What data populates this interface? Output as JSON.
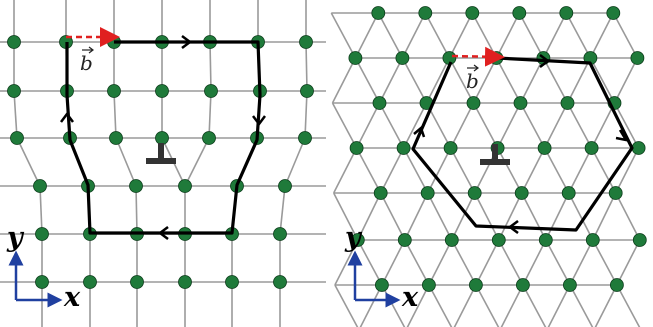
{
  "figure": {
    "panel_left": {
      "burgers_label": "b",
      "x_axis_label": "x",
      "y_axis_label": "y"
    },
    "panel_right": {
      "burgers_label": "b",
      "x_axis_label": "x",
      "y_axis_label": "y"
    }
  },
  "colors": {
    "atom": "#1f7a3a",
    "bond": "#9a9a9a",
    "circuit": "#000000",
    "burgers_vector": "#e02020",
    "axes": "#2040a0",
    "dislocation_symbol": "#333333"
  }
}
